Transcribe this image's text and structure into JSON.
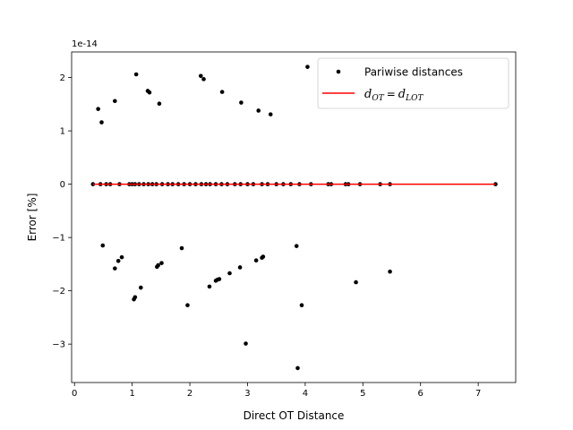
{
  "chart_data": {
    "type": "scatter",
    "xlabel": "Direct OT Distance",
    "ylabel": "Error [%]",
    "offset_text": "1e-14",
    "xlim": [
      -0.05,
      7.65
    ],
    "ylim": [
      -3.72,
      2.48
    ],
    "xticks": [
      0,
      1,
      2,
      3,
      4,
      5,
      6,
      7
    ],
    "yticks": [
      -3,
      -2,
      -1,
      0,
      1,
      2
    ],
    "grid": false,
    "legend_position": "top-right",
    "colors": {
      "points": "#000000",
      "line": "#ff0000"
    },
    "series": [
      {
        "name": "Pariwise distances",
        "kind": "scatter",
        "points": [
          [
            0.41,
            1.41
          ],
          [
            0.47,
            1.16
          ],
          [
            0.7,
            1.56
          ],
          [
            1.07,
            2.06
          ],
          [
            1.27,
            1.75
          ],
          [
            1.3,
            1.72
          ],
          [
            1.47,
            1.51
          ],
          [
            2.19,
            2.03
          ],
          [
            2.24,
            1.97
          ],
          [
            2.56,
            1.73
          ],
          [
            2.89,
            1.53
          ],
          [
            3.19,
            1.38
          ],
          [
            3.4,
            1.31
          ],
          [
            4.04,
            2.2
          ],
          [
            0.32,
            0.0
          ],
          [
            0.45,
            0.0
          ],
          [
            0.55,
            0.0
          ],
          [
            0.62,
            0.0
          ],
          [
            0.78,
            0.0
          ],
          [
            0.95,
            0.0
          ],
          [
            1.0,
            0.0
          ],
          [
            1.05,
            0.0
          ],
          [
            1.12,
            0.0
          ],
          [
            1.2,
            0.0
          ],
          [
            1.28,
            0.0
          ],
          [
            1.35,
            0.0
          ],
          [
            1.42,
            0.0
          ],
          [
            1.52,
            0.0
          ],
          [
            1.62,
            0.0
          ],
          [
            1.7,
            0.0
          ],
          [
            1.8,
            0.0
          ],
          [
            1.9,
            0.0
          ],
          [
            2.0,
            0.0
          ],
          [
            2.1,
            0.0
          ],
          [
            2.2,
            0.0
          ],
          [
            2.28,
            0.0
          ],
          [
            2.35,
            0.0
          ],
          [
            2.45,
            0.0
          ],
          [
            2.55,
            0.0
          ],
          [
            2.65,
            0.0
          ],
          [
            2.78,
            0.0
          ],
          [
            2.88,
            0.0
          ],
          [
            3.0,
            0.0
          ],
          [
            3.1,
            0.0
          ],
          [
            3.25,
            0.0
          ],
          [
            3.35,
            0.0
          ],
          [
            3.5,
            0.0
          ],
          [
            3.62,
            0.0
          ],
          [
            3.75,
            0.0
          ],
          [
            3.9,
            0.0
          ],
          [
            4.1,
            0.0
          ],
          [
            4.4,
            0.0
          ],
          [
            4.45,
            0.0
          ],
          [
            4.7,
            0.0
          ],
          [
            4.75,
            0.0
          ],
          [
            4.95,
            0.0
          ],
          [
            5.3,
            0.0
          ],
          [
            5.47,
            0.0
          ],
          [
            7.3,
            0.0
          ],
          [
            0.49,
            -1.15
          ],
          [
            0.7,
            -1.58
          ],
          [
            0.76,
            -1.44
          ],
          [
            0.82,
            -1.37
          ],
          [
            1.03,
            -2.16
          ],
          [
            1.05,
            -2.12
          ],
          [
            1.15,
            -1.94
          ],
          [
            1.43,
            -1.55
          ],
          [
            1.45,
            -1.52
          ],
          [
            1.51,
            -1.48
          ],
          [
            1.86,
            -1.2
          ],
          [
            1.96,
            -2.27
          ],
          [
            2.34,
            -1.92
          ],
          [
            2.45,
            -1.81
          ],
          [
            2.48,
            -1.79
          ],
          [
            2.51,
            -1.78
          ],
          [
            2.69,
            -1.67
          ],
          [
            2.87,
            -1.56
          ],
          [
            2.97,
            -2.99
          ],
          [
            3.15,
            -1.43
          ],
          [
            3.25,
            -1.38
          ],
          [
            3.27,
            -1.36
          ],
          [
            3.85,
            -1.16
          ],
          [
            3.87,
            -3.45
          ],
          [
            3.94,
            -2.27
          ],
          [
            4.88,
            -1.84
          ],
          [
            5.47,
            -1.64
          ]
        ]
      },
      {
        "name": "d_OT = d_LOT",
        "kind": "line",
        "points": [
          [
            0.32,
            0.0
          ],
          [
            7.3,
            0.0
          ]
        ]
      }
    ],
    "legend": {
      "scatter_label": "Pariwise distances",
      "line_label": {
        "d": "d",
        "sub_ot": "OT",
        "eq": "=",
        "sub_lot": "LOT"
      }
    }
  }
}
